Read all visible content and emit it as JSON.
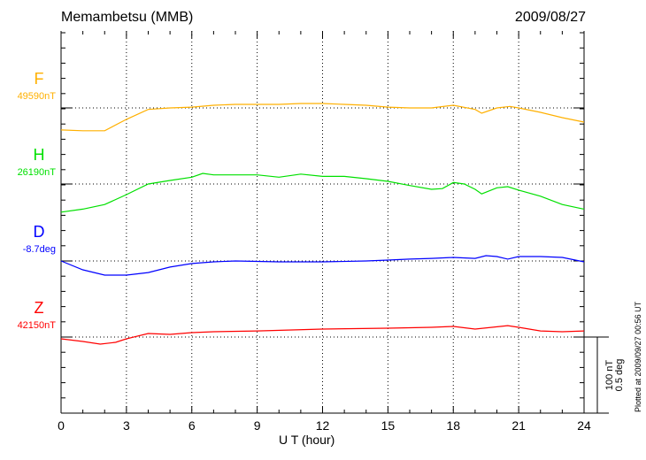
{
  "chart_data": {
    "type": "line",
    "title": "Memambetsu (MMB)",
    "date": "2009/08/27",
    "xlabel": "U T (hour)",
    "xlim": [
      0,
      24
    ],
    "xticks": [
      "0",
      "3",
      "6",
      "9",
      "12",
      "15",
      "18",
      "21",
      "24"
    ],
    "scale_bar": [
      "100 nT",
      "0.5 deg"
    ],
    "plotted_note": "Plotted at 2009/09/27 00:56 UT",
    "grid": "dotted at 3-hour marks and series baselines",
    "series": [
      {
        "name": "F",
        "baseline_label": "49590nT",
        "unit": "nT offset",
        "color": "#ffb000",
        "x": [
          0,
          1,
          2,
          3,
          4,
          5,
          6,
          7,
          8,
          9,
          10,
          11,
          12,
          13,
          14,
          15,
          16,
          17,
          18,
          19,
          19.3,
          20,
          20.6,
          21,
          22,
          23,
          24
        ],
        "y": [
          -29,
          -30,
          -30,
          -15,
          -2,
          0,
          1,
          3.5,
          4.7,
          4.7,
          4.7,
          5.8,
          5.8,
          4.7,
          3.5,
          1,
          0,
          0,
          3.5,
          -2,
          -7,
          0,
          2,
          0,
          -5.8,
          -12.8,
          -18.6
        ]
      },
      {
        "name": "H",
        "baseline_label": "26190nT",
        "unit": "nT offset",
        "color": "#00e000",
        "x": [
          0,
          1,
          2,
          3,
          4,
          5,
          6,
          6.5,
          7,
          8,
          9,
          10,
          11,
          12,
          13,
          14,
          15,
          16,
          17,
          17.5,
          18,
          18.5,
          19,
          19.3,
          20,
          20.5,
          21,
          22,
          23,
          24
        ],
        "y": [
          -37,
          -33,
          -27,
          -14,
          0,
          4.7,
          9,
          14,
          12,
          12,
          12,
          9,
          13,
          10,
          10,
          7,
          3.5,
          -2,
          -7,
          -6,
          2,
          0,
          -7,
          -13,
          -5,
          -3.5,
          -8,
          -16,
          -27,
          -33
        ]
      },
      {
        "name": "D",
        "baseline_label": "-8.7deg",
        "unit": "deg offset",
        "color": "#0000ff",
        "x": [
          0,
          1,
          2,
          3,
          4,
          5,
          6,
          7,
          8,
          10,
          12,
          14,
          15,
          16,
          17,
          18,
          19,
          19.5,
          20,
          20.5,
          21,
          22,
          23,
          24
        ],
        "y": [
          0,
          -0.058,
          -0.093,
          -0.093,
          -0.076,
          -0.04,
          -0.017,
          -0.006,
          0,
          -0.006,
          -0.006,
          0,
          0.006,
          0.012,
          0.017,
          0.023,
          0.017,
          0.035,
          0.029,
          0.012,
          0.029,
          0.029,
          0.023,
          -0.006
        ]
      },
      {
        "name": "Z",
        "baseline_label": "42150nT",
        "unit": "nT offset",
        "color": "#ff0000",
        "x": [
          0,
          1,
          1.8,
          2.5,
          3,
          4,
          5,
          6,
          7,
          9,
          12,
          15,
          17,
          18,
          19,
          20.5,
          21,
          22,
          23,
          24
        ],
        "y": [
          -2.3,
          -5.8,
          -9.3,
          -7,
          -2.3,
          4.7,
          3.5,
          5.8,
          7,
          8,
          10.5,
          11.6,
          12.8,
          14,
          10.5,
          15,
          12.8,
          8,
          7,
          8
        ]
      }
    ]
  }
}
